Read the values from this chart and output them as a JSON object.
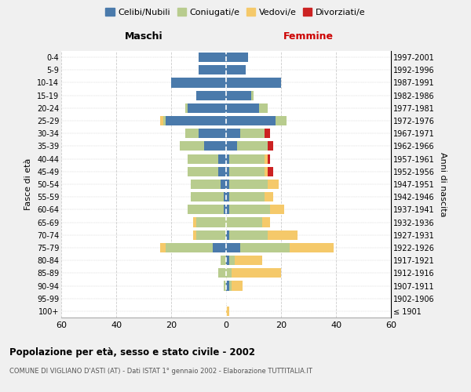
{
  "age_groups": [
    "100+",
    "95-99",
    "90-94",
    "85-89",
    "80-84",
    "75-79",
    "70-74",
    "65-69",
    "60-64",
    "55-59",
    "50-54",
    "45-49",
    "40-44",
    "35-39",
    "30-34",
    "25-29",
    "20-24",
    "15-19",
    "10-14",
    "5-9",
    "0-4"
  ],
  "birth_years": [
    "≤ 1901",
    "1902-1906",
    "1907-1911",
    "1912-1916",
    "1917-1921",
    "1922-1926",
    "1927-1931",
    "1932-1936",
    "1937-1941",
    "1942-1946",
    "1947-1951",
    "1952-1956",
    "1957-1961",
    "1962-1966",
    "1967-1971",
    "1972-1976",
    "1977-1981",
    "1982-1986",
    "1987-1991",
    "1992-1996",
    "1997-2001"
  ],
  "maschi": {
    "celibi": [
      0,
      0,
      0,
      0,
      0,
      5,
      0,
      0,
      1,
      1,
      2,
      3,
      3,
      8,
      10,
      22,
      14,
      11,
      20,
      10,
      10
    ],
    "coniugati": [
      0,
      0,
      1,
      3,
      2,
      17,
      11,
      11,
      13,
      12,
      11,
      11,
      11,
      9,
      5,
      1,
      1,
      0,
      0,
      0,
      0
    ],
    "vedovi": [
      0,
      0,
      0,
      0,
      0,
      2,
      1,
      1,
      0,
      0,
      0,
      0,
      0,
      0,
      0,
      1,
      0,
      0,
      0,
      0,
      0
    ],
    "divorziati": [
      0,
      0,
      0,
      0,
      0,
      0,
      0,
      0,
      0,
      0,
      0,
      0,
      0,
      0,
      0,
      0,
      0,
      0,
      0,
      0,
      0
    ]
  },
  "femmine": {
    "nubili": [
      0,
      0,
      1,
      0,
      1,
      5,
      1,
      0,
      1,
      1,
      1,
      1,
      1,
      4,
      5,
      18,
      12,
      9,
      20,
      7,
      8
    ],
    "coniugate": [
      0,
      0,
      1,
      2,
      2,
      18,
      14,
      13,
      15,
      13,
      14,
      13,
      13,
      11,
      9,
      4,
      3,
      1,
      0,
      0,
      0
    ],
    "vedove": [
      1,
      0,
      4,
      18,
      10,
      16,
      11,
      3,
      5,
      3,
      4,
      1,
      1,
      0,
      0,
      0,
      0,
      0,
      0,
      0,
      0
    ],
    "divorziate": [
      0,
      0,
      0,
      0,
      0,
      0,
      0,
      0,
      0,
      0,
      0,
      2,
      1,
      2,
      2,
      0,
      0,
      0,
      0,
      0,
      0
    ]
  },
  "colors": {
    "celibi_nubili": "#4a7aab",
    "coniugati": "#b8cc8e",
    "vedovi": "#f5c96a",
    "divorziati": "#cc2222"
  },
  "xlim": 60,
  "title": "Popolazione per età, sesso e stato civile - 2002",
  "subtitle": "COMUNE DI VIGLIANO D'ASTI (AT) - Dati ISTAT 1° gennaio 2002 - Elaborazione TUTTITALIA.IT",
  "ylabel_left": "Fasce di età",
  "ylabel_right": "Anni di nascita",
  "label_maschi": "Maschi",
  "label_femmine": "Femmine",
  "legend_labels": [
    "Celibi/Nubili",
    "Coniugati/e",
    "Vedovi/e",
    "Divorziati/e"
  ],
  "bg_color": "#f0f0f0",
  "plot_bg": "#ffffff"
}
